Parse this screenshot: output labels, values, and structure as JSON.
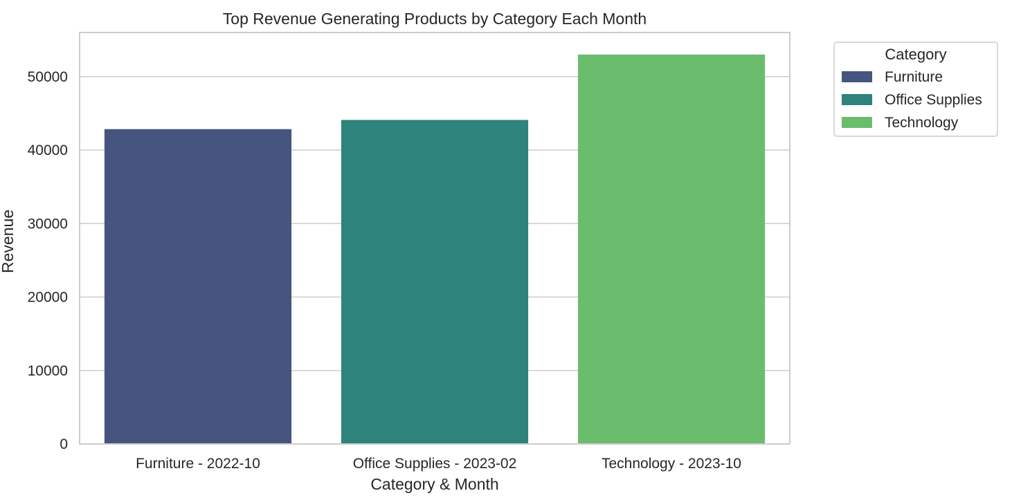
{
  "chart_data": {
    "type": "bar",
    "title": "Top Revenue Generating Products by Category Each Month",
    "xlabel": "Category & Month",
    "ylabel": "Revenue",
    "categories": [
      "Furniture - 2022-10",
      "Office Supplies - 2023-02",
      "Technology - 2023-10"
    ],
    "values": [
      42850,
      44100,
      53000
    ],
    "bar_colors": [
      "#46557f",
      "#2e837c",
      "#6bbd6e"
    ],
    "ylim": [
      0,
      56000
    ],
    "yticks": [
      0,
      10000,
      20000,
      30000,
      40000,
      50000
    ],
    "grid": "horizontal",
    "legend": {
      "title": "Category",
      "placement": "outside-top-right",
      "entries": [
        {
          "label": "Furniture",
          "color": "#46557f"
        },
        {
          "label": "Office Supplies",
          "color": "#2e837c"
        },
        {
          "label": "Technology",
          "color": "#6bbd6e"
        }
      ]
    }
  }
}
